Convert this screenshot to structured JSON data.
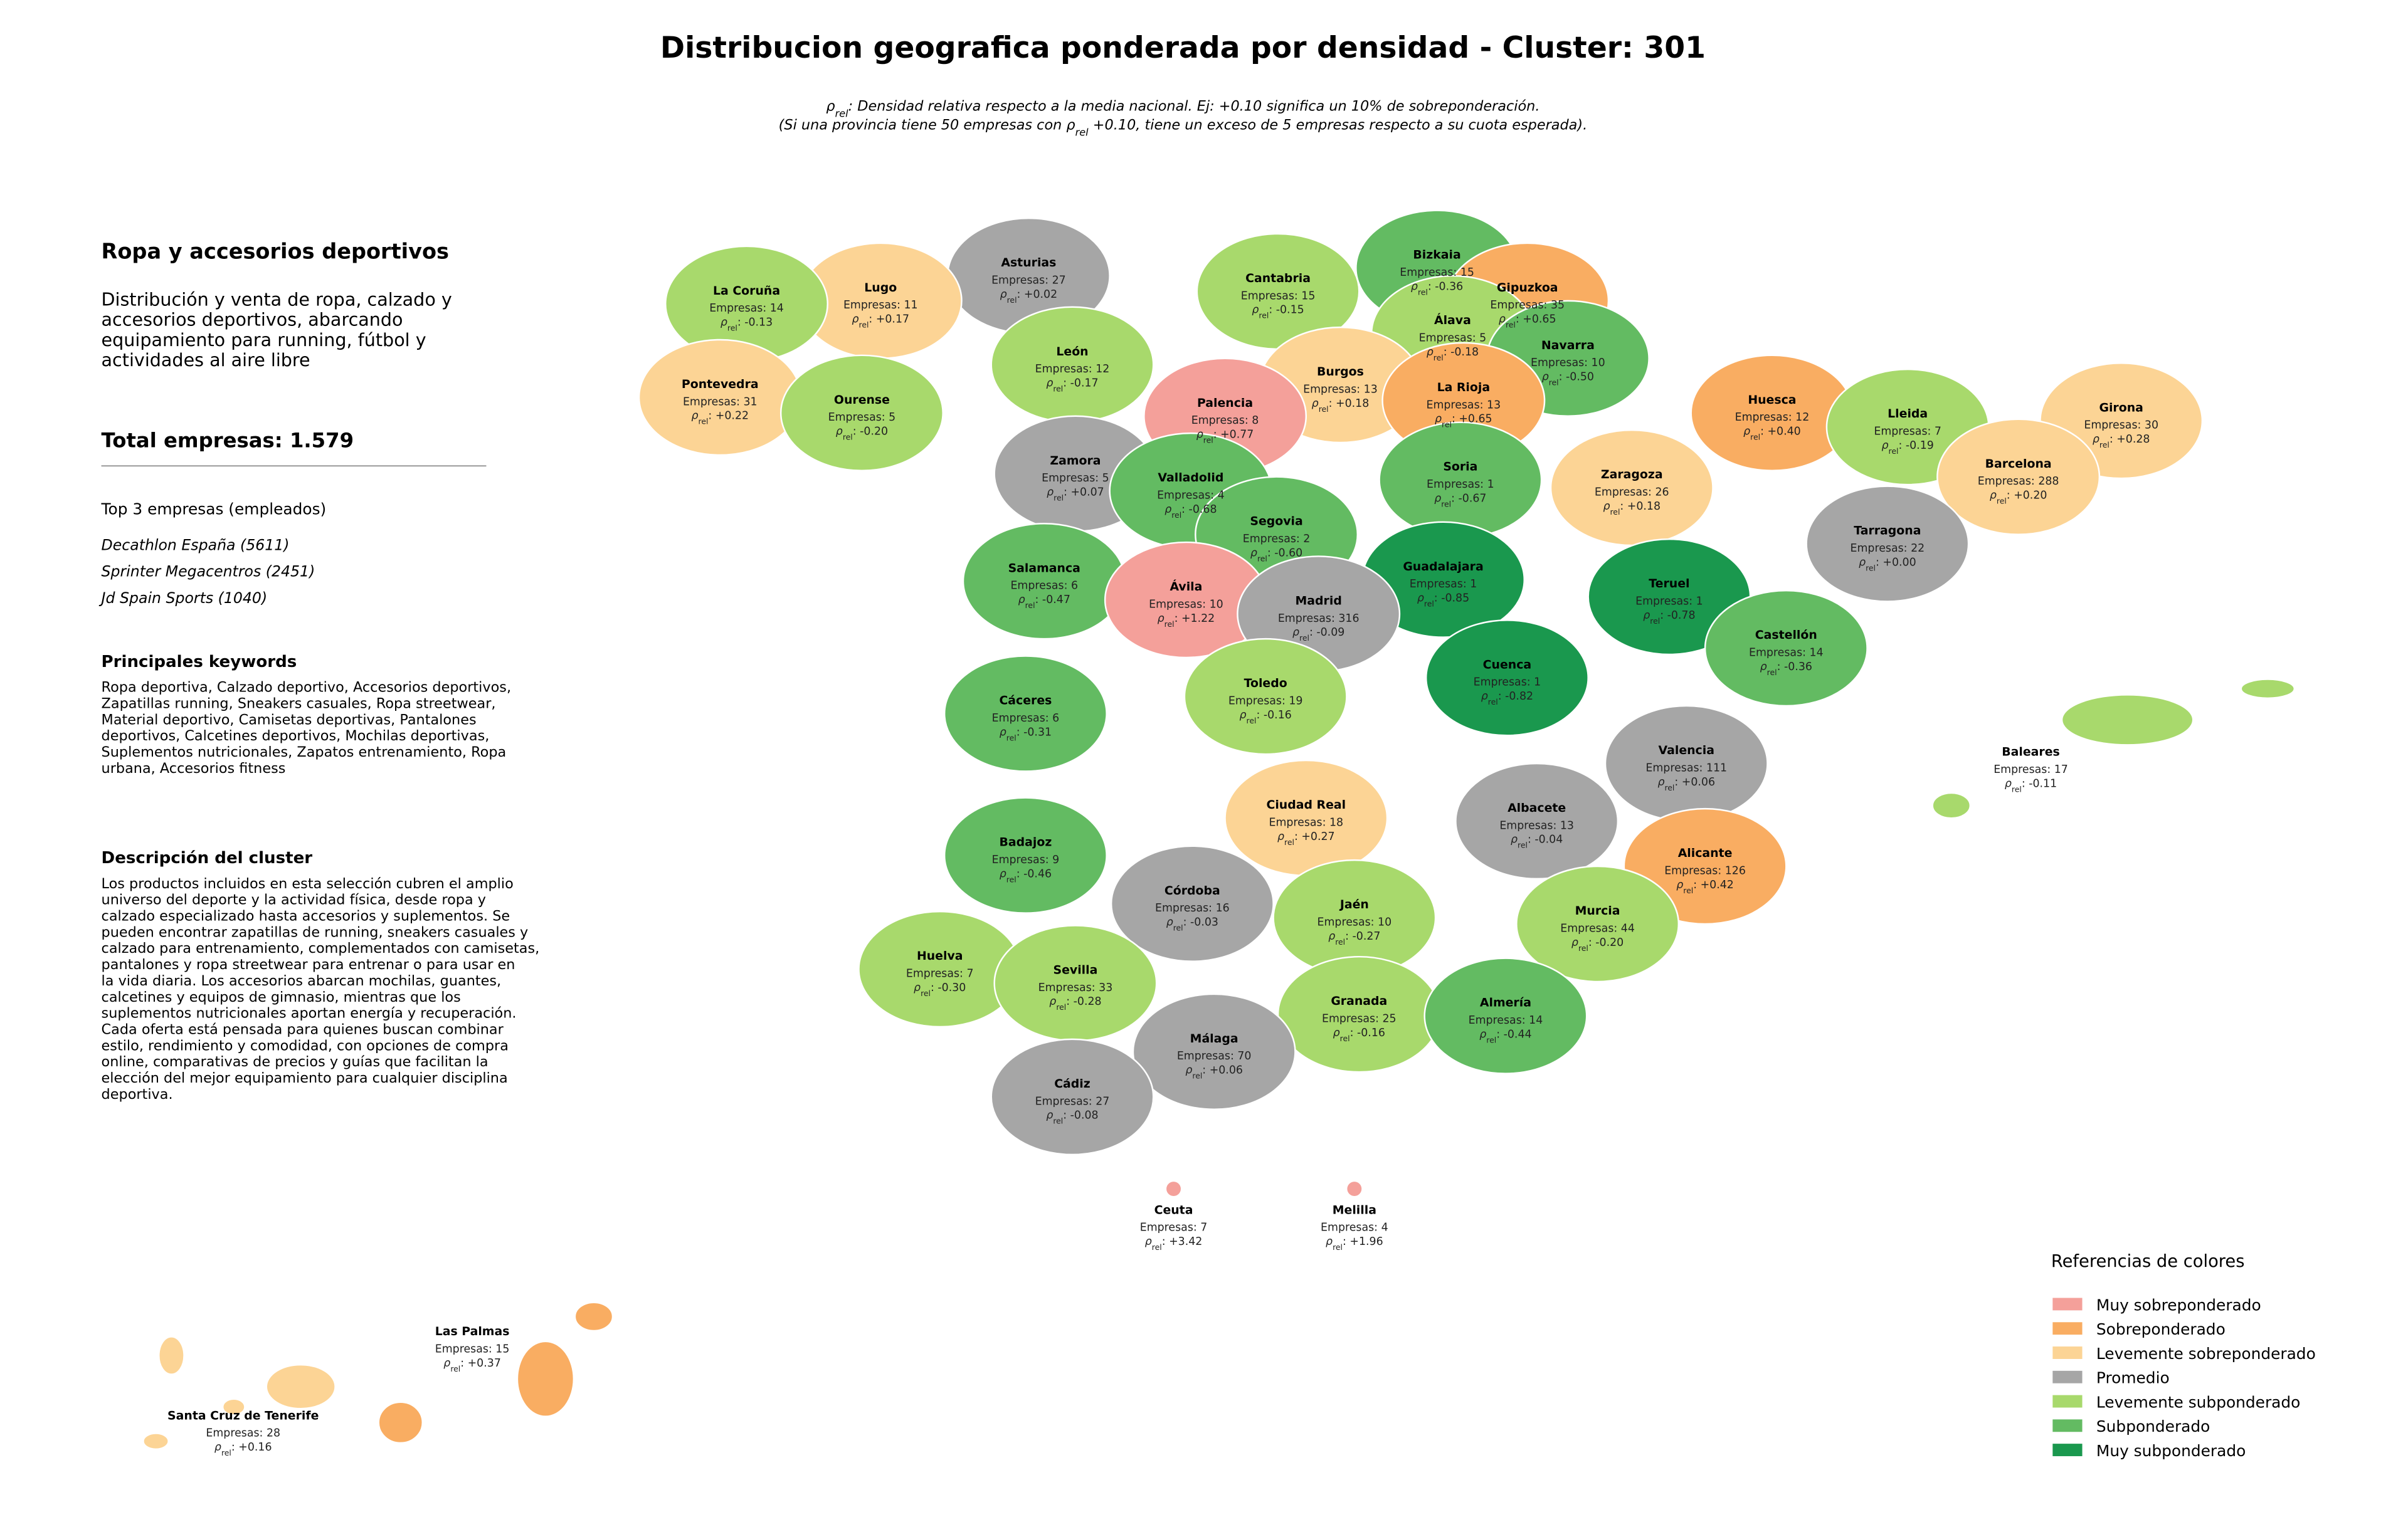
{
  "title": "Distribucion geografica ponderada por densidad - Cluster: 301",
  "subtitle": {
    "symbol": "ρ",
    "sub": "rel",
    "line1": ": Densidad relativa respecto a la media nacional. Ej: +0.10 significa un 10% de sobreponderación.",
    "line2a": "(Si una provincia tiene 50 empresas con ",
    "line2b": " +0.10, tiene un exceso de 5 empresas respecto a su cuota esperada)."
  },
  "panel": {
    "heading": "Ropa y accesorios deportivos",
    "description": [
      "Distribución y venta de ropa, calzado y",
      "accesorios deportivos, abarcando",
      "equipamiento para running, fútbol y",
      "actividades al aire libre"
    ],
    "total_prefix": "Total empresas:",
    "total": 1579,
    "total_label": "1.579",
    "top_heading": "Top 3 empresas (empleados)",
    "top": [
      "Decathlon España (5611)",
      "Sprinter Megacentros (2451)",
      "Jd Spain Sports (1040)"
    ],
    "keywords_heading": "Principales keywords",
    "keywords": [
      "Ropa deportiva, Calzado deportivo, Accesorios deportivos,",
      "Zapatillas running, Sneakers casuales, Ropa streetwear,",
      "Material deportivo, Camisetas deportivas, Pantalones",
      "deportivos, Calcetines deportivos, Mochilas deportivas,",
      "Suplementos nutricionales, Zapatos entrenamiento, Ropa",
      "urbana, Accesorios fitness"
    ],
    "cluster_heading": "Descripción del cluster",
    "cluster_text": [
      "Los productos incluidos en esta selección cubren el amplio",
      "universo del deporte y la actividad física, desde ropa y",
      "calzado especializado hasta accesorios y suplementos. Se",
      "pueden encontrar zapatillas de running, sneakers casuales y",
      "calzado para entrenamiento, complementados con camisetas,",
      "pantalones y ropa streetwear para entrenar o para usar en",
      "la vida diaria. Los accesorios abarcan mochilas, guantes,",
      "calcetines y equipos de gimnasio, mientras que los",
      "suplementos nutricionales aportan energía y recuperación.",
      "Cada oferta está pensada para quienes buscan combinar",
      "estilo, rendimiento y comodidad, con opciones de compra",
      "online, comparativas de precios y guías que facilitan la",
      "elección del mejor equipamiento para cualquier disciplina",
      "deportiva."
    ]
  },
  "empresas_prefix": "Empresas:",
  "provinces": [
    {
      "name": "Asturias",
      "empresas": 27,
      "rho": 0.02,
      "rho_label": "+0.02",
      "color": "#a6a6a6"
    },
    {
      "name": "Cantabria",
      "empresas": 15,
      "rho": -0.15,
      "rho_label": "-0.15",
      "color": "#a8d96c"
    },
    {
      "name": "Bizkaia",
      "empresas": 15,
      "rho": -0.36,
      "rho_label": "-0.36",
      "color": "#63bb62"
    },
    {
      "name": "Gipuzkoa",
      "empresas": 35,
      "rho": 0.65,
      "rho_label": "+0.65",
      "color": "#f9ad62"
    },
    {
      "name": "Álava",
      "empresas": 5,
      "rho": -0.18,
      "rho_label": "-0.18",
      "color": "#a8d96c"
    },
    {
      "name": "Navarra",
      "empresas": 10,
      "rho": -0.5,
      "rho_label": "-0.50",
      "color": "#63bb62"
    },
    {
      "name": "La Coruña",
      "empresas": 14,
      "rho": -0.13,
      "rho_label": "-0.13",
      "color": "#a8d96c"
    },
    {
      "name": "Lugo",
      "empresas": 11,
      "rho": 0.17,
      "rho_label": "+0.17",
      "color": "#fcd495"
    },
    {
      "name": "Pontevedra",
      "empresas": 31,
      "rho": 0.22,
      "rho_label": "+0.22",
      "color": "#fcd495"
    },
    {
      "name": "Ourense",
      "empresas": 5,
      "rho": -0.2,
      "rho_label": "-0.20",
      "color": "#a8d96c"
    },
    {
      "name": "León",
      "empresas": 12,
      "rho": -0.17,
      "rho_label": "-0.17",
      "color": "#a8d96c"
    },
    {
      "name": "Palencia",
      "empresas": 8,
      "rho": 0.77,
      "rho_label": "+0.77",
      "color": "#f4a09a"
    },
    {
      "name": "Burgos",
      "empresas": 13,
      "rho": 0.18,
      "rho_label": "+0.18",
      "color": "#fcd495"
    },
    {
      "name": "La Rioja",
      "empresas": 13,
      "rho": 0.65,
      "rho_label": "+0.65",
      "color": "#f9ad62"
    },
    {
      "name": "Huesca",
      "empresas": 12,
      "rho": 0.4,
      "rho_label": "+0.40",
      "color": "#f9ad62"
    },
    {
      "name": "Lleida",
      "empresas": 7,
      "rho": -0.19,
      "rho_label": "-0.19",
      "color": "#a8d96c"
    },
    {
      "name": "Girona",
      "empresas": 30,
      "rho": 0.28,
      "rho_label": "+0.28",
      "color": "#fcd495"
    },
    {
      "name": "Barcelona",
      "empresas": 288,
      "rho": 0.2,
      "rho_label": "+0.20",
      "color": "#fcd495"
    },
    {
      "name": "Zamora",
      "empresas": 5,
      "rho": 0.07,
      "rho_label": "+0.07",
      "color": "#a6a6a6"
    },
    {
      "name": "Valladolid",
      "empresas": 4,
      "rho": -0.68,
      "rho_label": "-0.68",
      "color": "#63bb62"
    },
    {
      "name": "Soria",
      "empresas": 1,
      "rho": -0.67,
      "rho_label": "-0.67",
      "color": "#63bb62"
    },
    {
      "name": "Zaragoza",
      "empresas": 26,
      "rho": 0.18,
      "rho_label": "+0.18",
      "color": "#fcd495"
    },
    {
      "name": "Tarragona",
      "empresas": 22,
      "rho": 0.0,
      "rho_label": "+0.00",
      "color": "#a6a6a6"
    },
    {
      "name": "Segovia",
      "empresas": 2,
      "rho": -0.6,
      "rho_label": "-0.60",
      "color": "#63bb62"
    },
    {
      "name": "Salamanca",
      "empresas": 6,
      "rho": -0.47,
      "rho_label": "-0.47",
      "color": "#63bb62"
    },
    {
      "name": "Guadalajara",
      "empresas": 1,
      "rho": -0.85,
      "rho_label": "-0.85",
      "color": "#1a984e"
    },
    {
      "name": "Teruel",
      "empresas": 1,
      "rho": -0.78,
      "rho_label": "-0.78",
      "color": "#1a984e"
    },
    {
      "name": "Ávila",
      "empresas": 10,
      "rho": 1.22,
      "rho_label": "+1.22",
      "color": "#f4a09a"
    },
    {
      "name": "Madrid",
      "empresas": 316,
      "rho": -0.09,
      "rho_label": "-0.09",
      "color": "#a6a6a6"
    },
    {
      "name": "Castellón",
      "empresas": 14,
      "rho": -0.36,
      "rho_label": "-0.36",
      "color": "#63bb62"
    },
    {
      "name": "Cuenca",
      "empresas": 1,
      "rho": -0.82,
      "rho_label": "-0.82",
      "color": "#1a984e"
    },
    {
      "name": "Toledo",
      "empresas": 19,
      "rho": -0.16,
      "rho_label": "-0.16",
      "color": "#a8d96c"
    },
    {
      "name": "Cáceres",
      "empresas": 6,
      "rho": -0.31,
      "rho_label": "-0.31",
      "color": "#63bb62"
    },
    {
      "name": "Valencia",
      "empresas": 111,
      "rho": 0.06,
      "rho_label": "+0.06",
      "color": "#a6a6a6"
    },
    {
      "name": "Baleares",
      "empresas": 17,
      "rho": -0.11,
      "rho_label": "-0.11",
      "color": "#a8d96c"
    },
    {
      "name": "Albacete",
      "empresas": 13,
      "rho": -0.04,
      "rho_label": "-0.04",
      "color": "#a6a6a6"
    },
    {
      "name": "Ciudad Real",
      "empresas": 18,
      "rho": 0.27,
      "rho_label": "+0.27",
      "color": "#fcd495"
    },
    {
      "name": "Badajoz",
      "empresas": 9,
      "rho": -0.46,
      "rho_label": "-0.46",
      "color": "#63bb62"
    },
    {
      "name": "Alicante",
      "empresas": 126,
      "rho": 0.42,
      "rho_label": "+0.42",
      "color": "#f9ad62"
    },
    {
      "name": "Córdoba",
      "empresas": 16,
      "rho": -0.03,
      "rho_label": "-0.03",
      "color": "#a6a6a6"
    },
    {
      "name": "Jaén",
      "empresas": 10,
      "rho": -0.27,
      "rho_label": "-0.27",
      "color": "#a8d96c"
    },
    {
      "name": "Murcia",
      "empresas": 44,
      "rho": -0.2,
      "rho_label": "-0.20",
      "color": "#a8d96c"
    },
    {
      "name": "Huelva",
      "empresas": 7,
      "rho": -0.3,
      "rho_label": "-0.30",
      "color": "#a8d96c"
    },
    {
      "name": "Sevilla",
      "empresas": 33,
      "rho": -0.28,
      "rho_label": "-0.28",
      "color": "#a8d96c"
    },
    {
      "name": "Granada",
      "empresas": 25,
      "rho": -0.16,
      "rho_label": "-0.16",
      "color": "#a8d96c"
    },
    {
      "name": "Almería",
      "empresas": 14,
      "rho": -0.44,
      "rho_label": "-0.44",
      "color": "#63bb62"
    },
    {
      "name": "Málaga",
      "empresas": 70,
      "rho": 0.06,
      "rho_label": "+0.06",
      "color": "#a6a6a6"
    },
    {
      "name": "Cádiz",
      "empresas": 27,
      "rho": -0.08,
      "rho_label": "-0.08",
      "color": "#a6a6a6"
    },
    {
      "name": "Ceuta",
      "empresas": 7,
      "rho": 3.42,
      "rho_label": "+3.42",
      "color": "#f4a09a"
    },
    {
      "name": "Melilla",
      "empresas": 4,
      "rho": 1.96,
      "rho_label": "+1.96",
      "color": "#f4a09a"
    },
    {
      "name": "Las Palmas",
      "empresas": 15,
      "rho": 0.37,
      "rho_label": "+0.37",
      "color": "#f9ad62"
    },
    {
      "name": "Santa Cruz de Tenerife",
      "empresas": 28,
      "rho": 0.16,
      "rho_label": "+0.16",
      "color": "#fcd495"
    }
  ],
  "legend": {
    "title": "Referencias de colores",
    "items": [
      {
        "name": "Muy sobreponderado",
        "color": "#f4a09a"
      },
      {
        "name": "Sobreponderado",
        "color": "#f9ad62"
      },
      {
        "name": "Levemente sobreponderado",
        "color": "#fcd495"
      },
      {
        "name": "Promedio",
        "color": "#a6a6a6"
      },
      {
        "name": "Levemente subponderado",
        "color": "#a8d96c"
      },
      {
        "name": "Subponderado",
        "color": "#63bb62"
      },
      {
        "name": "Muy subponderado",
        "color": "#1a984e"
      }
    ]
  }
}
